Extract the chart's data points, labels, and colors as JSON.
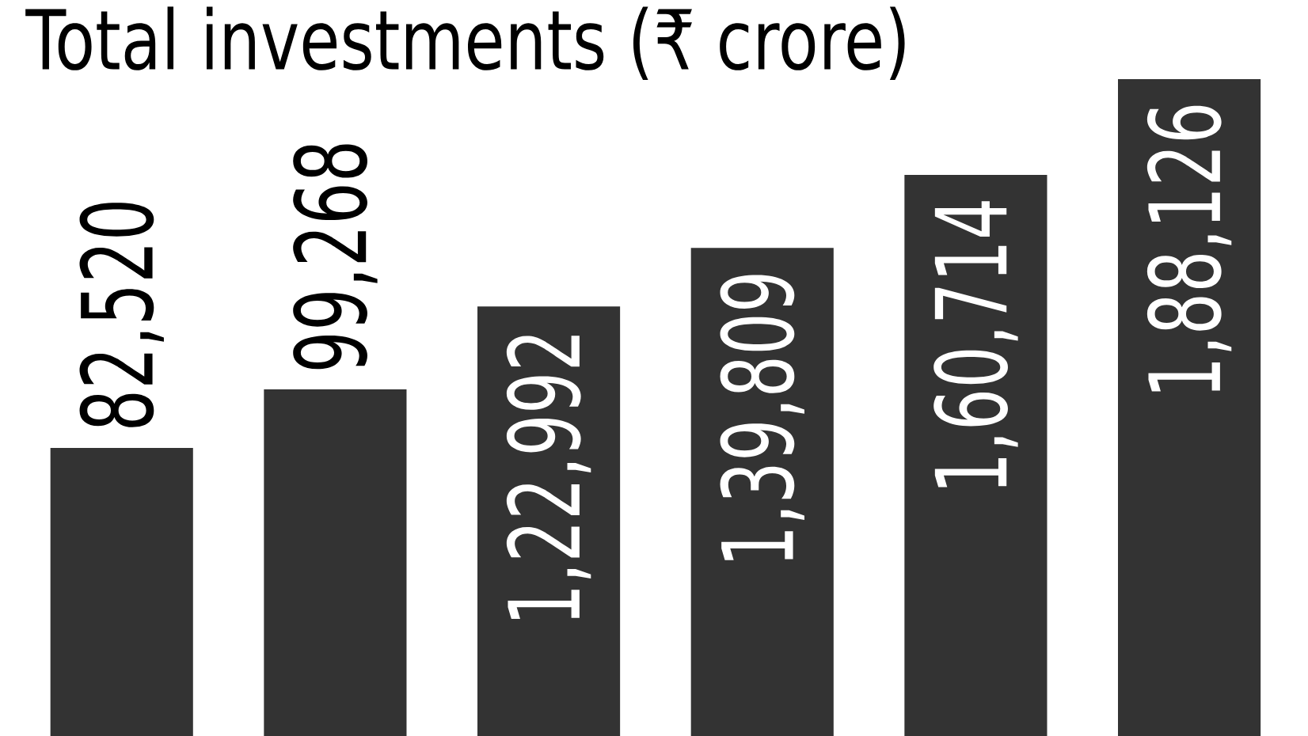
{
  "chart_data": {
    "type": "bar",
    "title": "Total investments (₹ crore)",
    "categories": [
      null,
      null,
      null,
      null,
      null,
      null
    ],
    "values": [
      82520,
      99268,
      122992,
      139809,
      160714,
      188126
    ],
    "value_labels": [
      "82,520",
      "99,268",
      "1,22,992",
      "1,39,809",
      "1,60,714",
      "1,88,126"
    ],
    "color": "#333333"
  }
}
